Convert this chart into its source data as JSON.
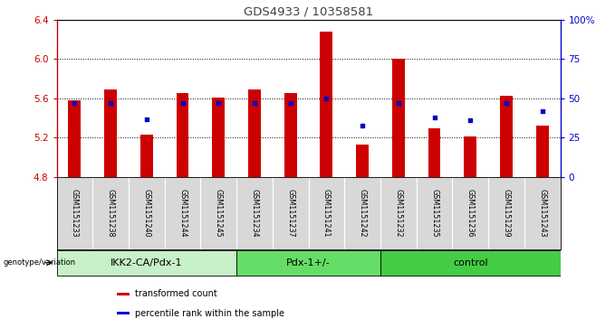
{
  "title": "GDS4933 / 10358581",
  "samples": [
    "GSM1151233",
    "GSM1151238",
    "GSM1151240",
    "GSM1151244",
    "GSM1151245",
    "GSM1151234",
    "GSM1151237",
    "GSM1151241",
    "GSM1151242",
    "GSM1151232",
    "GSM1151235",
    "GSM1151236",
    "GSM1151239",
    "GSM1151243"
  ],
  "bar_values": [
    5.58,
    5.69,
    5.23,
    5.65,
    5.61,
    5.69,
    5.65,
    6.28,
    5.13,
    6.0,
    5.3,
    5.21,
    5.63,
    5.32
  ],
  "dot_values": [
    47,
    47,
    37,
    47,
    47,
    47,
    47,
    50,
    33,
    47,
    38,
    36,
    47,
    42
  ],
  "ymin": 4.8,
  "ymax": 6.4,
  "yticks": [
    4.8,
    5.2,
    5.6,
    6.0,
    6.4
  ],
  "right_yticks": [
    0,
    25,
    50,
    75,
    100
  ],
  "bar_color": "#cc0000",
  "dot_color": "#0000cc",
  "groups": [
    {
      "label": "IKK2-CA/Pdx-1",
      "start": 0,
      "end": 5,
      "color": "#c8f0c8"
    },
    {
      "label": "Pdx-1+/-",
      "start": 5,
      "end": 9,
      "color": "#66dd66"
    },
    {
      "label": "control",
      "start": 9,
      "end": 14,
      "color": "#44cc44"
    }
  ],
  "xlabel_genotype": "genotype/variation",
  "legend_items": [
    {
      "color": "#cc0000",
      "label": "transformed count"
    },
    {
      "color": "#0000cc",
      "label": "percentile rank within the sample"
    }
  ],
  "tick_label_color_left": "#cc0000",
  "tick_label_color_right": "#0000cc",
  "title_color": "#404040",
  "label_area_color": "#d8d8d8",
  "grid_color": "#000000"
}
